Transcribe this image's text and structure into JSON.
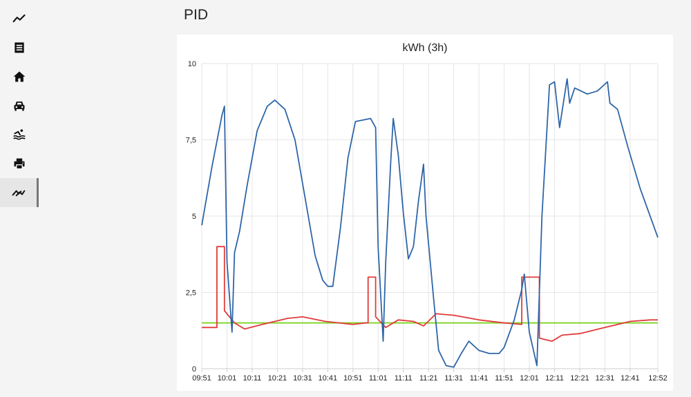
{
  "sidebar": {
    "items": [
      {
        "name": "chart-line-icon",
        "active": false
      },
      {
        "name": "document-icon",
        "active": false
      },
      {
        "name": "home-icon",
        "active": false
      },
      {
        "name": "car-icon",
        "active": false
      },
      {
        "name": "pool-icon",
        "active": false
      },
      {
        "name": "printer-icon",
        "active": false
      },
      {
        "name": "trending-icon",
        "active": true
      }
    ]
  },
  "page": {
    "title": "PID"
  },
  "chart_data": {
    "type": "line",
    "title": "kWh (3h)",
    "xlabel": "",
    "ylabel": "",
    "ylim": [
      0,
      10
    ],
    "xlim": [
      "09:51",
      "12:52"
    ],
    "yticks": [
      0,
      2.5,
      5,
      7.5,
      10
    ],
    "ytick_labels": [
      "0",
      "2,5",
      "5",
      "7,5",
      "10"
    ],
    "xtick_labels": [
      "09:51",
      "10:01",
      "10:11",
      "10:21",
      "10:31",
      "10:41",
      "10:51",
      "11:01",
      "11:11",
      "11:21",
      "11:31",
      "11:41",
      "11:51",
      "12:01",
      "12:11",
      "12:21",
      "12:31",
      "12:41",
      "12:52"
    ],
    "grid": true,
    "series": [
      {
        "color": "#2e65a8",
        "points": [
          [
            "09:51",
            4.7
          ],
          [
            "09:55",
            6.6
          ],
          [
            "09:59",
            8.3
          ],
          [
            "10:00",
            8.6
          ],
          [
            "10:01",
            3.5
          ],
          [
            "10:03",
            1.2
          ],
          [
            "10:04",
            3.8
          ],
          [
            "10:06",
            4.5
          ],
          [
            "10:09",
            6.0
          ],
          [
            "10:13",
            7.8
          ],
          [
            "10:17",
            8.6
          ],
          [
            "10:20",
            8.8
          ],
          [
            "10:24",
            8.5
          ],
          [
            "10:28",
            7.5
          ],
          [
            "10:32",
            5.6
          ],
          [
            "10:36",
            3.7
          ],
          [
            "10:39",
            2.9
          ],
          [
            "10:41",
            2.7
          ],
          [
            "10:43",
            2.7
          ],
          [
            "10:46",
            4.6
          ],
          [
            "10:49",
            6.9
          ],
          [
            "10:52",
            8.1
          ],
          [
            "10:58",
            8.2
          ],
          [
            "11:00",
            7.9
          ],
          [
            "11:01",
            4.0
          ],
          [
            "11:03",
            0.9
          ],
          [
            "11:04",
            3.5
          ],
          [
            "11:06",
            6.8
          ],
          [
            "11:07",
            8.2
          ],
          [
            "11:09",
            7.0
          ],
          [
            "11:11",
            5.1
          ],
          [
            "11:13",
            3.6
          ],
          [
            "11:15",
            4.0
          ],
          [
            "11:17",
            5.5
          ],
          [
            "11:19",
            6.7
          ],
          [
            "11:20",
            5.0
          ],
          [
            "11:23",
            2.3
          ],
          [
            "11:25",
            0.6
          ],
          [
            "11:28",
            0.1
          ],
          [
            "11:31",
            0.05
          ],
          [
            "11:34",
            0.5
          ],
          [
            "11:37",
            0.9
          ],
          [
            "11:41",
            0.6
          ],
          [
            "11:45",
            0.5
          ],
          [
            "11:49",
            0.5
          ],
          [
            "11:51",
            0.7
          ],
          [
            "11:55",
            1.6
          ],
          [
            "11:58",
            2.6
          ],
          [
            "11:59",
            3.1
          ],
          [
            "12:01",
            1.2
          ],
          [
            "12:04",
            0.1
          ],
          [
            "12:06",
            5.0
          ],
          [
            "12:09",
            9.3
          ],
          [
            "12:11",
            9.4
          ],
          [
            "12:13",
            7.9
          ],
          [
            "12:16",
            9.5
          ],
          [
            "12:17",
            8.7
          ],
          [
            "12:19",
            9.2
          ],
          [
            "12:24",
            9.0
          ],
          [
            "12:28",
            9.1
          ],
          [
            "12:32",
            9.4
          ],
          [
            "12:33",
            8.7
          ],
          [
            "12:36",
            8.5
          ],
          [
            "12:40",
            7.3
          ],
          [
            "12:45",
            5.9
          ],
          [
            "12:52",
            4.3
          ]
        ]
      },
      {
        "color": "#e03a3a",
        "points": [
          [
            "09:51",
            1.35
          ],
          [
            "09:57",
            1.35
          ],
          [
            "09:57",
            4.0
          ],
          [
            "10:00",
            4.0
          ],
          [
            "10:00",
            1.9
          ],
          [
            "10:04",
            1.5
          ],
          [
            "10:08",
            1.3
          ],
          [
            "10:15",
            1.45
          ],
          [
            "10:25",
            1.65
          ],
          [
            "10:31",
            1.7
          ],
          [
            "10:40",
            1.55
          ],
          [
            "10:51",
            1.45
          ],
          [
            "10:56",
            1.5
          ],
          [
            "10:57",
            1.5
          ],
          [
            "10:57",
            3.0
          ],
          [
            "11:00",
            3.0
          ],
          [
            "11:00",
            1.7
          ],
          [
            "11:04",
            1.35
          ],
          [
            "11:09",
            1.6
          ],
          [
            "11:15",
            1.55
          ],
          [
            "11:19",
            1.4
          ],
          [
            "11:24",
            1.8
          ],
          [
            "11:31",
            1.75
          ],
          [
            "11:41",
            1.6
          ],
          [
            "11:51",
            1.5
          ],
          [
            "11:58",
            1.45
          ],
          [
            "11:58",
            3.0
          ],
          [
            "12:05",
            3.0
          ],
          [
            "12:05",
            1.0
          ],
          [
            "12:10",
            0.9
          ],
          [
            "12:14",
            1.1
          ],
          [
            "12:21",
            1.15
          ],
          [
            "12:31",
            1.35
          ],
          [
            "12:41",
            1.55
          ],
          [
            "12:49",
            1.6
          ],
          [
            "12:52",
            1.6
          ]
        ]
      },
      {
        "color": "#7ed321",
        "points": [
          [
            "09:51",
            1.5
          ],
          [
            "12:52",
            1.5
          ]
        ]
      }
    ]
  }
}
